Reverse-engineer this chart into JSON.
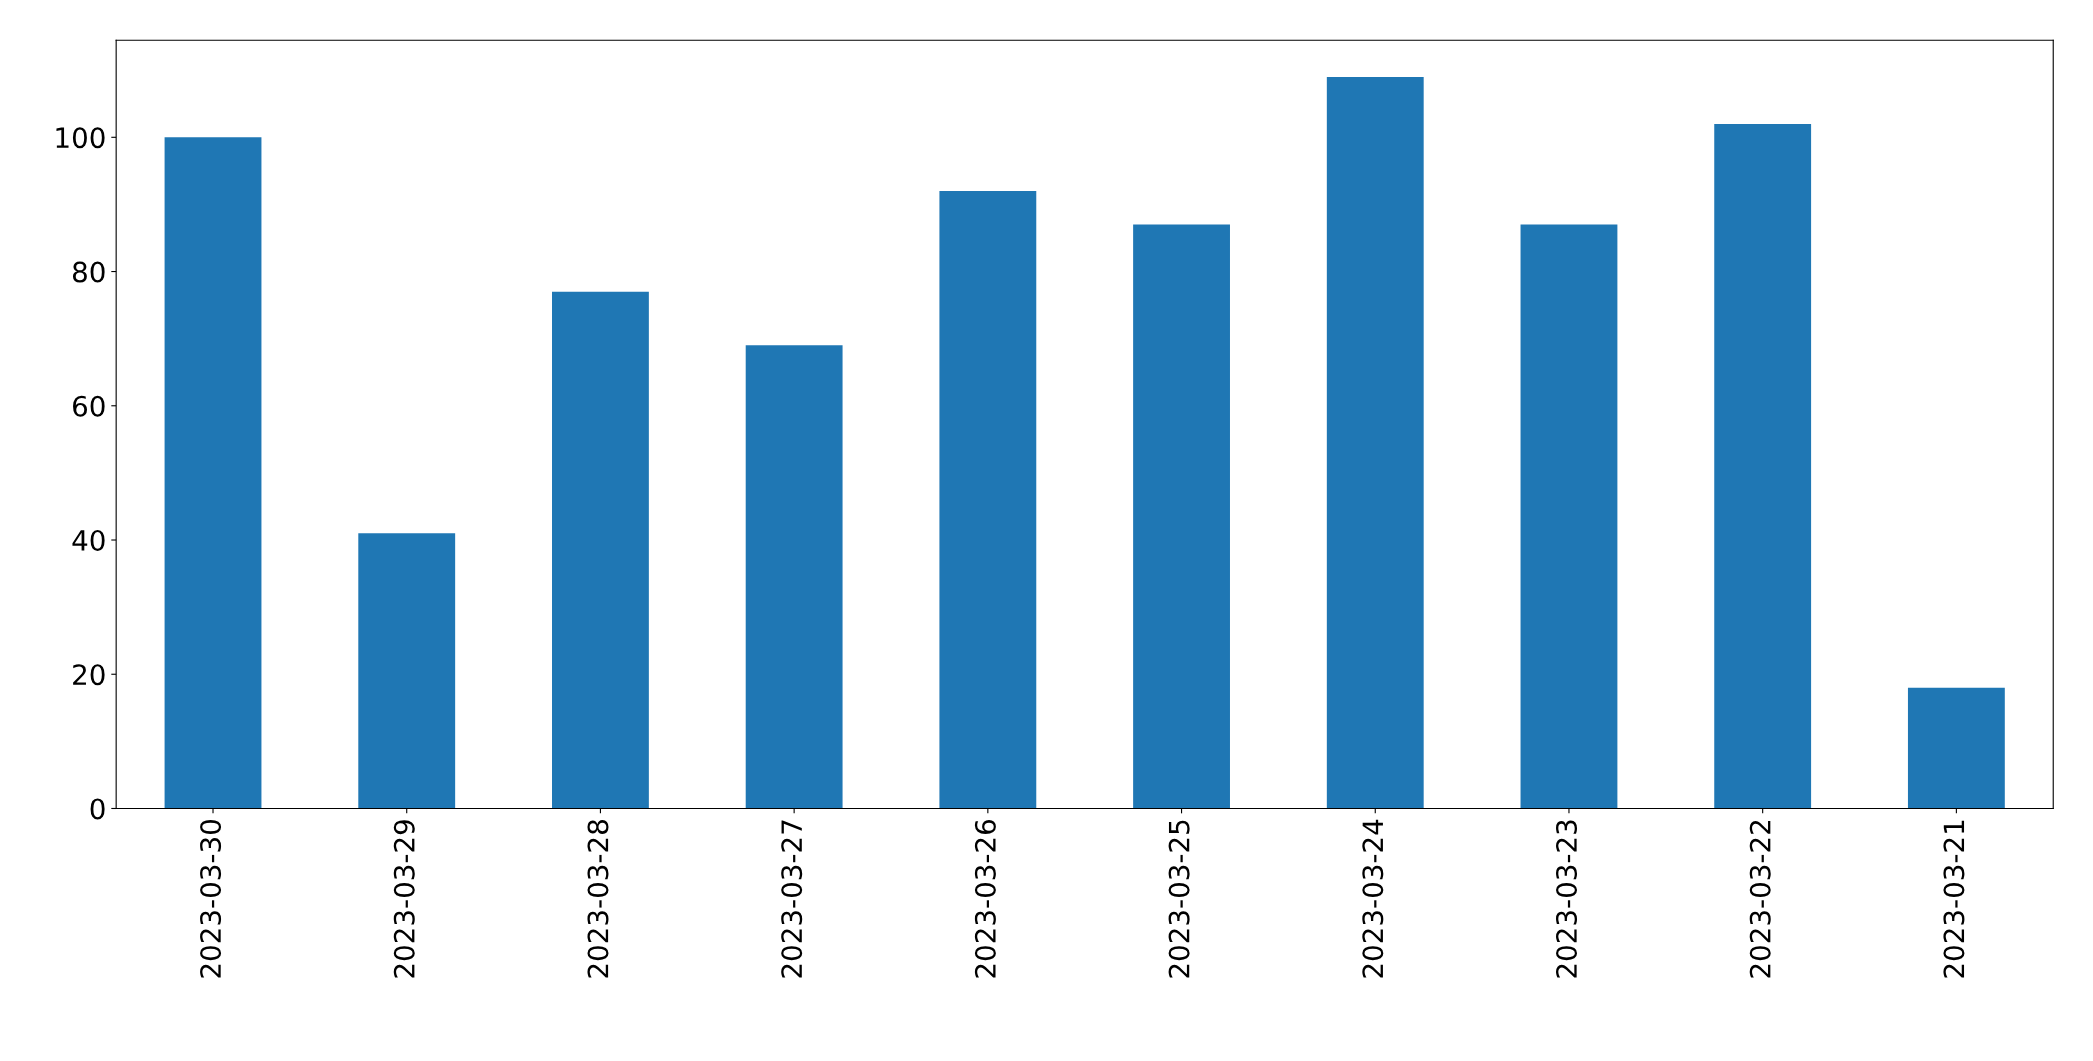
{
  "chart_data": {
    "type": "bar",
    "categories": [
      "2023-03-30",
      "2023-03-29",
      "2023-03-28",
      "2023-03-27",
      "2023-03-26",
      "2023-03-25",
      "2023-03-24",
      "2023-03-23",
      "2023-03-22",
      "2023-03-21"
    ],
    "values": [
      100,
      41,
      77,
      69,
      92,
      87,
      109,
      87,
      102,
      18
    ],
    "color": "#1f77b4",
    "ylim": [
      0,
      114.45
    ],
    "yticks": [
      0,
      20,
      40,
      60,
      80,
      100
    ],
    "grid": false,
    "legend": false
  }
}
